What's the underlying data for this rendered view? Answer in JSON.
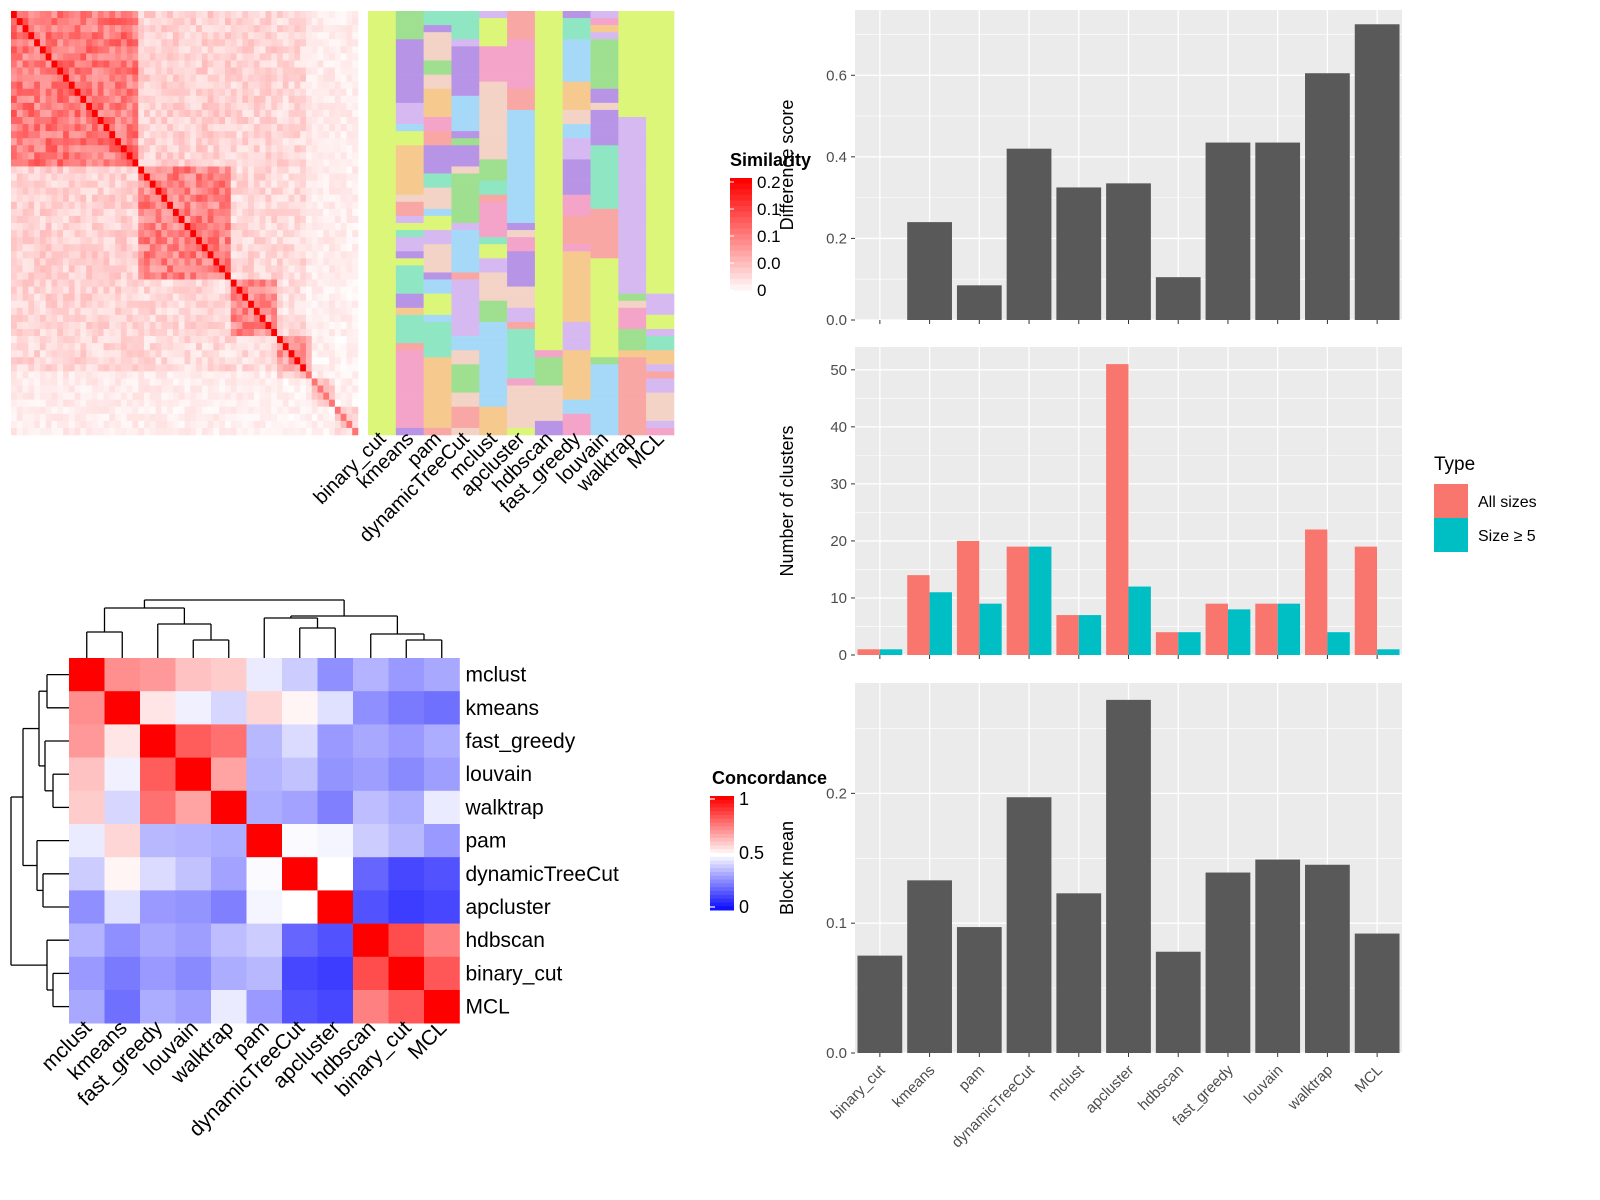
{
  "colors": {
    "panel_bg": "#ebebeb",
    "grid": "#ffffff",
    "bar": "#595959",
    "all_sizes": "#f8766d",
    "size_ge5": "#00bfc4",
    "heat_high": "#ff0000",
    "heat_mid": "#ffffff",
    "heat_low": "#0000ff",
    "class_colors": [
      "#dcf67a",
      "#9ee08f",
      "#a6d9f7",
      "#f4a3c9",
      "#b894e6",
      "#f6c98e",
      "#f9a7a5",
      "#8fe6c2",
      "#d7b9f2",
      "#f3d3c5"
    ]
  },
  "similarity_heatmap": {
    "legend_title": "Similarity",
    "legend_ticks": [
      "0.2",
      "0.1",
      "0.1",
      "0.0",
      "0"
    ],
    "column_labels": [
      "binary_cut",
      "kmeans",
      "pam",
      "dynamicTreeCut",
      "mclust",
      "apcluster",
      "hdbscan",
      "fast_greedy",
      "louvain",
      "walktrap",
      "MCL"
    ]
  },
  "concordance_heatmap": {
    "legend_title": "Concordance",
    "legend_ticks": [
      "1",
      "0.5",
      "0"
    ],
    "row_labels": [
      "mclust",
      "kmeans",
      "fast_greedy",
      "louvain",
      "walktrap",
      "pam",
      "dynamicTreeCut",
      "apcluster",
      "hdbscan",
      "binary_cut",
      "MCL"
    ],
    "col_labels": [
      "mclust",
      "kmeans",
      "fast_greedy",
      "louvain",
      "walktrap",
      "pam",
      "dynamicTreeCut",
      "apcluster",
      "hdbscan",
      "binary_cut",
      "MCL"
    ],
    "values": [
      [
        1.0,
        0.72,
        0.7,
        0.62,
        0.6,
        0.46,
        0.4,
        0.28,
        0.35,
        0.3,
        0.33
      ],
      [
        0.72,
        1.0,
        0.55,
        0.47,
        0.42,
        0.58,
        0.52,
        0.44,
        0.28,
        0.24,
        0.22
      ],
      [
        0.7,
        0.55,
        1.0,
        0.82,
        0.78,
        0.36,
        0.43,
        0.3,
        0.33,
        0.3,
        0.34
      ],
      [
        0.62,
        0.47,
        0.82,
        1.0,
        0.68,
        0.35,
        0.38,
        0.29,
        0.31,
        0.27,
        0.31
      ],
      [
        0.6,
        0.42,
        0.78,
        0.68,
        1.0,
        0.34,
        0.32,
        0.25,
        0.37,
        0.34,
        0.46
      ],
      [
        0.46,
        0.58,
        0.36,
        0.35,
        0.34,
        1.0,
        0.49,
        0.48,
        0.4,
        0.36,
        0.3
      ],
      [
        0.4,
        0.52,
        0.43,
        0.38,
        0.32,
        0.49,
        1.0,
        0.5,
        0.2,
        0.14,
        0.16
      ],
      [
        0.28,
        0.44,
        0.3,
        0.29,
        0.25,
        0.48,
        0.5,
        1.0,
        0.16,
        0.12,
        0.14
      ],
      [
        0.35,
        0.28,
        0.33,
        0.31,
        0.37,
        0.4,
        0.2,
        0.16,
        1.0,
        0.85,
        0.75
      ],
      [
        0.3,
        0.24,
        0.3,
        0.27,
        0.34,
        0.36,
        0.14,
        0.12,
        0.85,
        1.0,
        0.83
      ],
      [
        0.33,
        0.22,
        0.34,
        0.31,
        0.46,
        0.3,
        0.16,
        0.14,
        0.75,
        0.83,
        1.0
      ]
    ]
  },
  "chart_data": [
    {
      "type": "bar",
      "ylabel": "Difference score",
      "categories": [
        "binary_cut",
        "kmeans",
        "pam",
        "dynamicTreeCut",
        "mclust",
        "apcluster",
        "hdbscan",
        "fast_greedy",
        "louvain",
        "walktrap",
        "MCL"
      ],
      "values": [
        0.0,
        0.24,
        0.085,
        0.42,
        0.325,
        0.335,
        0.105,
        0.435,
        0.435,
        0.605,
        0.725
      ],
      "ylim": [
        0,
        0.76
      ],
      "yticks": [
        "0.0",
        "0.2",
        "0.4",
        "0.6"
      ],
      "ytick_values": [
        0,
        0.2,
        0.4,
        0.6
      ]
    },
    {
      "type": "bar",
      "ylabel": "Number of clusters",
      "categories": [
        "binary_cut",
        "kmeans",
        "pam",
        "dynamicTreeCut",
        "mclust",
        "apcluster",
        "hdbscan",
        "fast_greedy",
        "louvain",
        "walktrap",
        "MCL"
      ],
      "legend_title": "Type",
      "series": [
        {
          "name": "All sizes",
          "values": [
            1,
            14,
            20,
            19,
            7,
            51,
            4,
            9,
            9,
            22,
            19
          ]
        },
        {
          "name": "Size ≥ 5",
          "values": [
            1,
            11,
            9,
            19,
            7,
            12,
            4,
            8,
            9,
            4,
            1
          ]
        }
      ],
      "ylim": [
        0,
        54
      ],
      "yticks": [
        "0",
        "10",
        "20",
        "30",
        "40",
        "50"
      ],
      "ytick_values": [
        0,
        10,
        20,
        30,
        40,
        50
      ]
    },
    {
      "type": "bar",
      "ylabel": "Block mean",
      "categories": [
        "binary_cut",
        "kmeans",
        "pam",
        "dynamicTreeCut",
        "mclust",
        "apcluster",
        "hdbscan",
        "fast_greedy",
        "louvain",
        "walktrap",
        "MCL"
      ],
      "values": [
        0.075,
        0.133,
        0.097,
        0.197,
        0.123,
        0.272,
        0.078,
        0.139,
        0.149,
        0.145,
        0.092
      ],
      "ylim": [
        0,
        0.285
      ],
      "yticks": [
        "0.0",
        "0.1",
        "0.2"
      ],
      "ytick_values": [
        0,
        0.1,
        0.2
      ]
    }
  ]
}
